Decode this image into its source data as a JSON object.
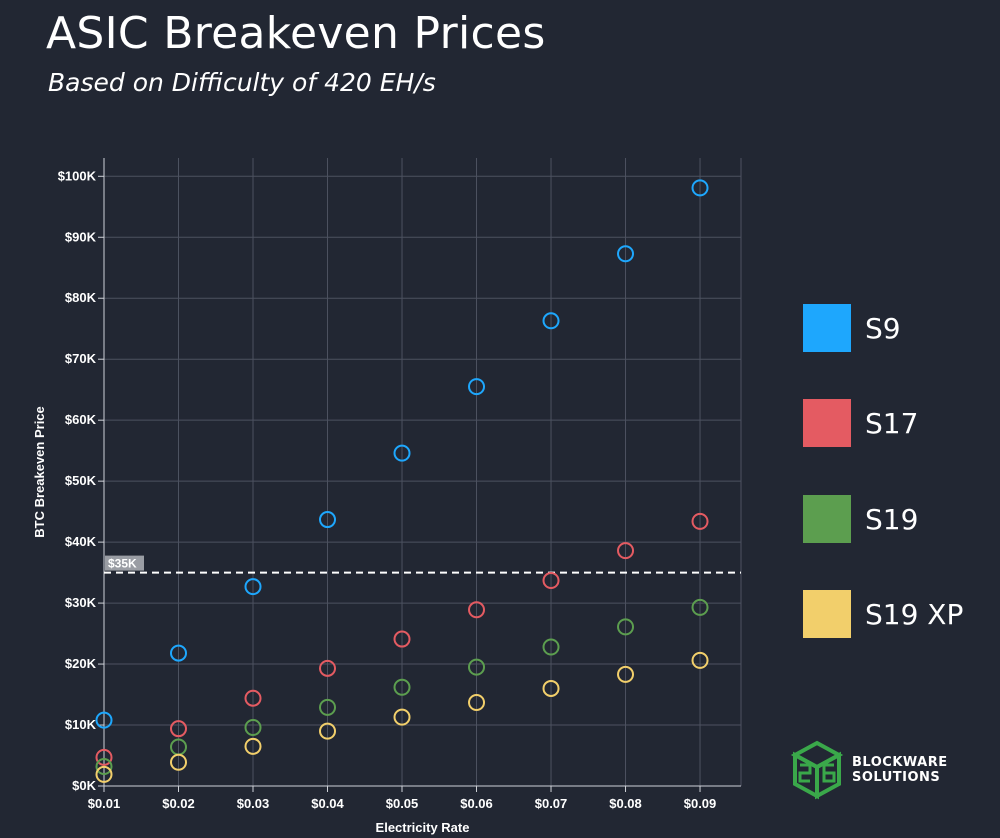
{
  "header": {
    "title": "ASIC Breakeven Prices",
    "subtitle": "Based on Difficulty of 420 EH/s"
  },
  "chart_data": {
    "type": "scatter",
    "title": "ASIC Breakeven Prices",
    "subtitle": "Based on Difficulty of 420 EH/s",
    "xlabel": "Electricity Rate",
    "ylabel": "BTC Breakeven Price",
    "x": [
      0.01,
      0.02,
      0.03,
      0.04,
      0.05,
      0.06,
      0.07,
      0.08,
      0.09
    ],
    "x_tick_labels": [
      "$0.01",
      "$0.02",
      "$0.03",
      "$0.04",
      "$0.05",
      "$0.06",
      "$0.07",
      "$0.08",
      "$0.09"
    ],
    "y_ticks": [
      0,
      10000,
      20000,
      30000,
      40000,
      50000,
      60000,
      70000,
      80000,
      90000,
      100000
    ],
    "y_tick_labels": [
      "$0K",
      "$10K",
      "$20K",
      "$30K",
      "$40K",
      "$50K",
      "$60K",
      "$70K",
      "$80K",
      "$90K",
      "$100K"
    ],
    "xlim": [
      0.01,
      0.0955
    ],
    "ylim": [
      0,
      103000
    ],
    "grid": true,
    "legend_position": "right",
    "series": [
      {
        "name": "S9",
        "color": "#1ea7fd",
        "values": [
          10800,
          21800,
          32700,
          43700,
          54600,
          65500,
          76300,
          87300,
          98100
        ]
      },
      {
        "name": "S17",
        "color": "#e45b62",
        "values": [
          4700,
          9400,
          14400,
          19300,
          24100,
          28900,
          33700,
          38600,
          43400
        ]
      },
      {
        "name": "S19",
        "color": "#5c9e4f",
        "values": [
          3200,
          6400,
          9600,
          12900,
          16200,
          19500,
          22800,
          26100,
          29300
        ]
      },
      {
        "name": "S19 XP",
        "color": "#f2cf6b",
        "values": [
          1900,
          3900,
          6500,
          9000,
          11300,
          13700,
          16000,
          18300,
          20600
        ]
      }
    ],
    "annotations": [
      {
        "type": "hline",
        "y": 35000,
        "label": "$35K",
        "style": "dashed",
        "color": "#ffffff"
      }
    ]
  },
  "logo": {
    "line1": "BLOCKWARE",
    "line2": "SOLUTIONS",
    "color": "#3aa84a"
  }
}
